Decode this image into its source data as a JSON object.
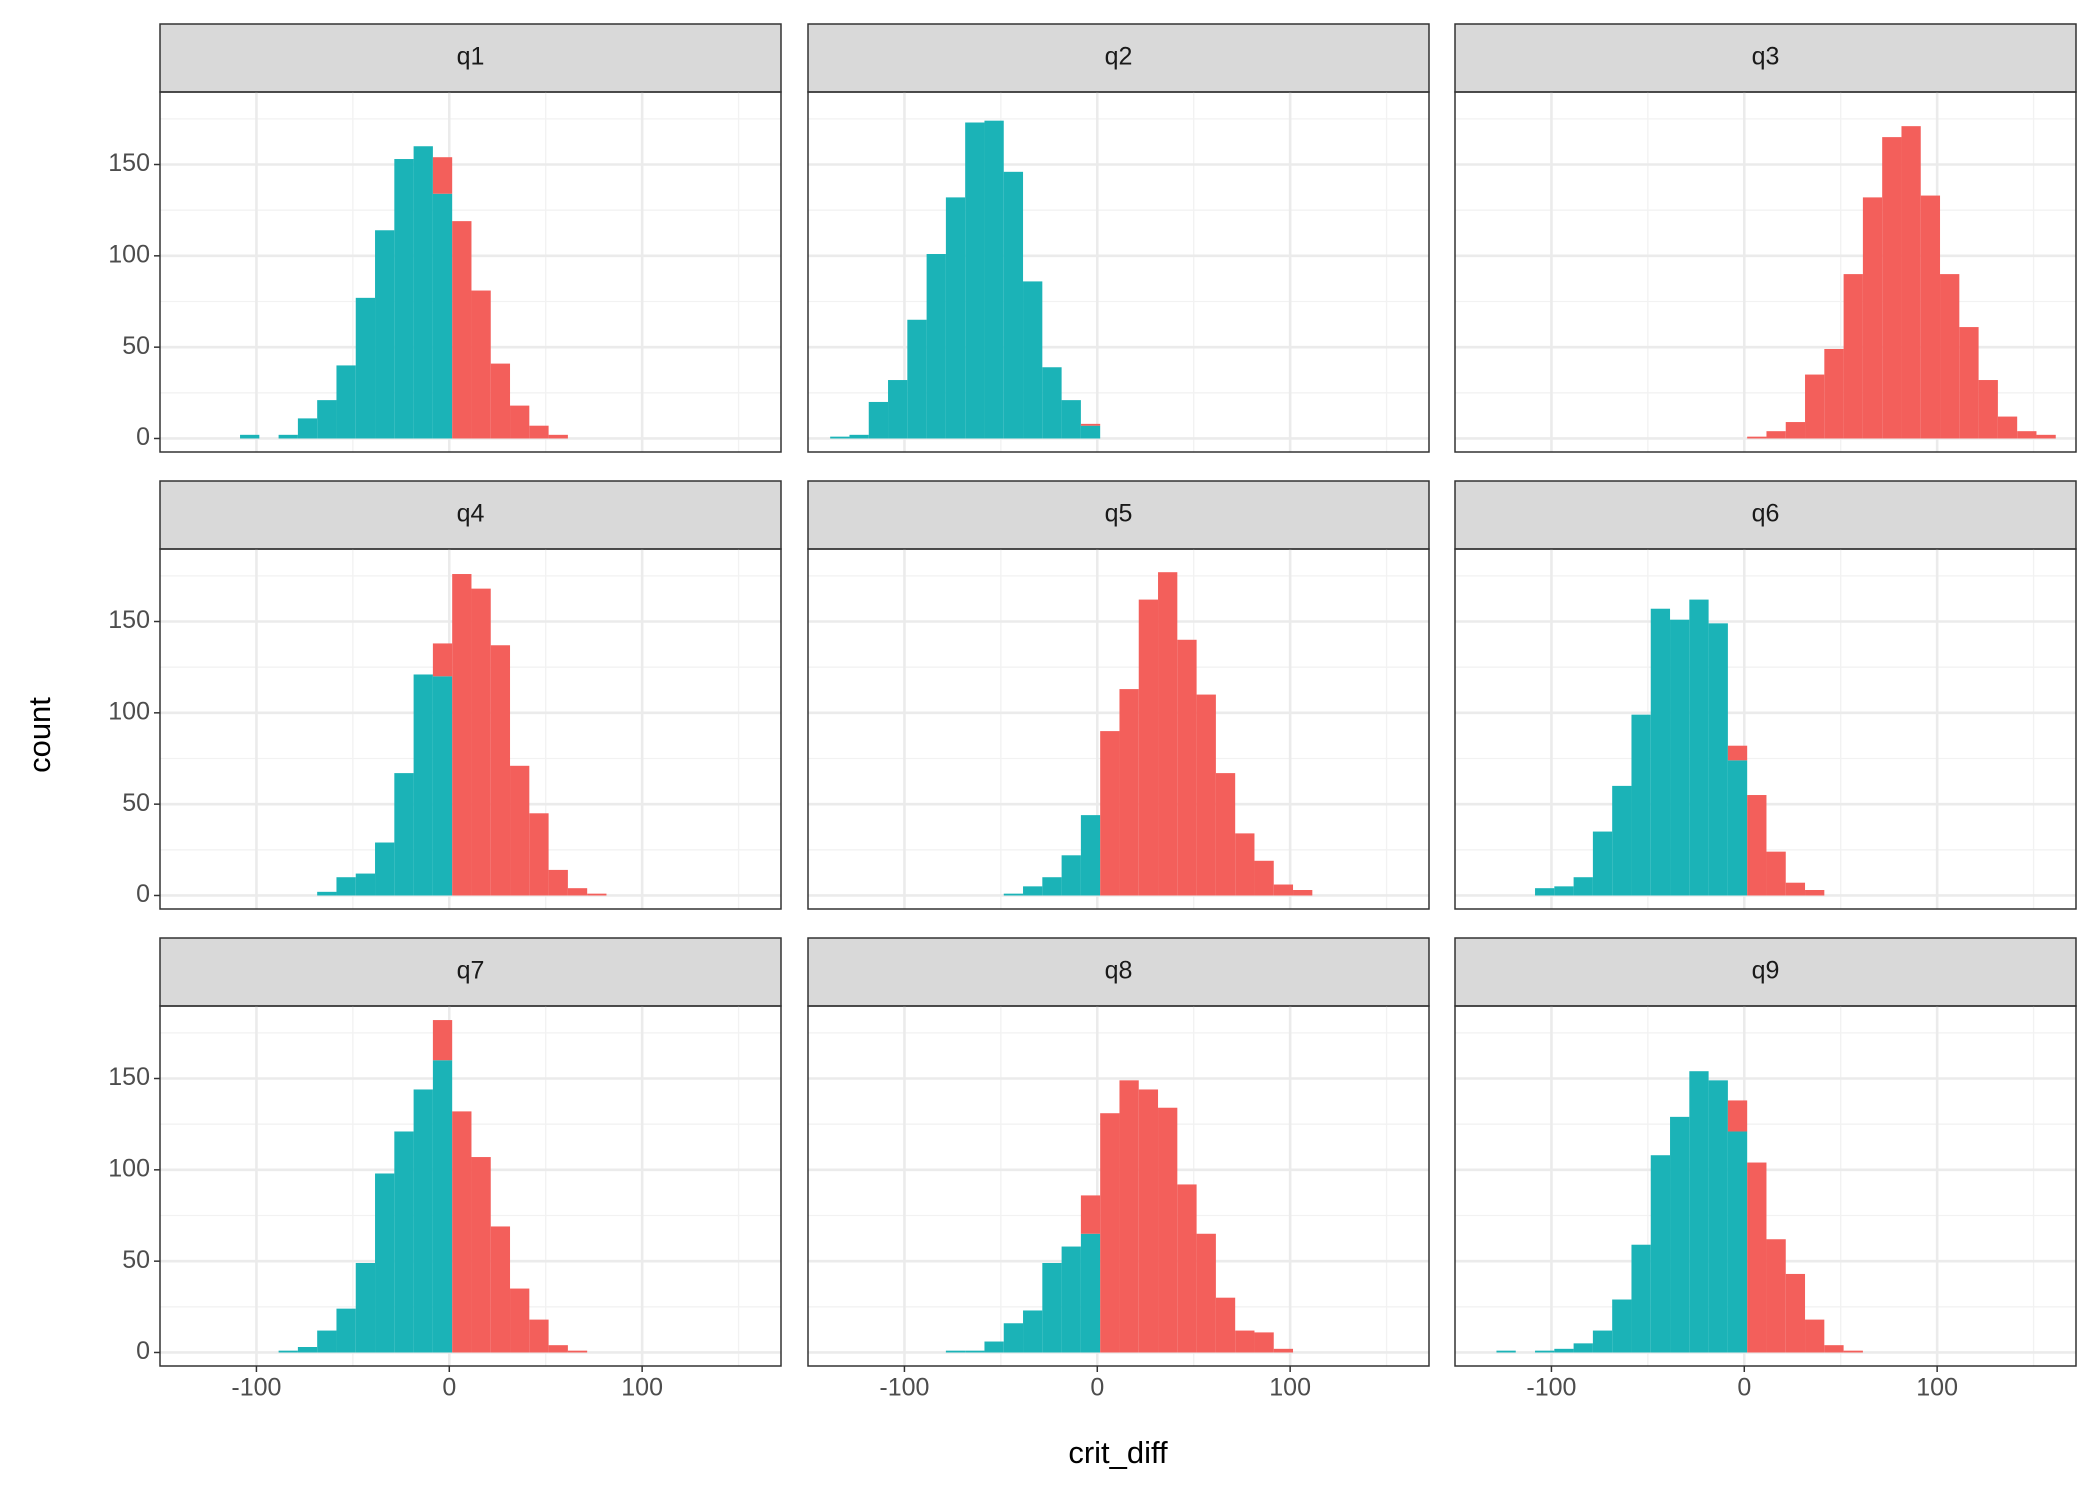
{
  "chart_data": {
    "type": "histogram",
    "xlabel": "crit_diff",
    "ylabel": "count",
    "xlim": [
      -150,
      172
    ],
    "ylim": [
      -7.4,
      189.7
    ],
    "xticks": [
      -100,
      0,
      100
    ],
    "yticks": [
      0,
      50,
      100,
      150
    ],
    "grid": true,
    "bins": [
      -138.5,
      -128.5,
      -118.5,
      -108.5,
      -98.5,
      -88.5,
      -78.5,
      -68.5,
      -58.5,
      -48.5,
      -38.5,
      -28.5,
      -18.5,
      -8.5,
      1.5,
      11.5,
      21.5,
      31.5,
      41.5,
      51.5,
      61.5,
      71.5,
      81.5,
      91.5,
      101.5,
      111.5,
      121.5,
      131.5,
      141.5,
      151.5,
      161.5
    ],
    "panels": [
      {
        "title": "q1",
        "series": [
          {
            "color": "#1bb3b7",
            "values": [
              0,
              0,
              0,
              2,
              0,
              2,
              11,
              21,
              40,
              77,
              114,
              153,
              160,
              134,
              0,
              0,
              0,
              0,
              0,
              0,
              0,
              0,
              0,
              0,
              0,
              0,
              0,
              0,
              0,
              0
            ]
          },
          {
            "color": "#f35f5b",
            "values": [
              0,
              0,
              0,
              0,
              0,
              0,
              0,
              0,
              0,
              0,
              0,
              0,
              0,
              20,
              119,
              81,
              41,
              18,
              7,
              2,
              0,
              0,
              0,
              0,
              0,
              0,
              0,
              0,
              0,
              0
            ]
          }
        ]
      },
      {
        "title": "q2",
        "series": [
          {
            "color": "#1bb3b7",
            "values": [
              1,
              2,
              20,
              32,
              65,
              101,
              132,
              173,
              174,
              146,
              86,
              39,
              21,
              7,
              0,
              0,
              0,
              0,
              0,
              0,
              0,
              0,
              0,
              0,
              0,
              0,
              0,
              0,
              0,
              0
            ]
          },
          {
            "color": "#f35f5b",
            "values": [
              0,
              0,
              0,
              0,
              0,
              0,
              0,
              0,
              0,
              0,
              0,
              0,
              0,
              1,
              0,
              0,
              0,
              0,
              0,
              0,
              0,
              0,
              0,
              0,
              0,
              0,
              0,
              0,
              0,
              0
            ]
          }
        ]
      },
      {
        "title": "q3",
        "series": [
          {
            "color": "#1bb3b7",
            "values": [
              0,
              0,
              0,
              0,
              0,
              0,
              0,
              0,
              0,
              0,
              0,
              0,
              0,
              0,
              0,
              0,
              0,
              0,
              0,
              0,
              0,
              0,
              0,
              0,
              0,
              0,
              0,
              0,
              0,
              0
            ]
          },
          {
            "color": "#f35f5b",
            "values": [
              0,
              0,
              0,
              0,
              0,
              0,
              0,
              0,
              0,
              0,
              0,
              0,
              0,
              0,
              1,
              4,
              9,
              35,
              49,
              90,
              132,
              165,
              171,
              133,
              90,
              61,
              32,
              12,
              4,
              2
            ]
          }
        ]
      },
      {
        "title": "q4",
        "series": [
          {
            "color": "#1bb3b7",
            "values": [
              0,
              0,
              0,
              0,
              0,
              0,
              0,
              2,
              10,
              12,
              29,
              67,
              121,
              120,
              0,
              0,
              0,
              0,
              0,
              0,
              0,
              0,
              0,
              0,
              0,
              0,
              0,
              0,
              0,
              0
            ]
          },
          {
            "color": "#f35f5b",
            "values": [
              0,
              0,
              0,
              0,
              0,
              0,
              0,
              0,
              0,
              0,
              0,
              0,
              0,
              18,
              176,
              168,
              137,
              71,
              45,
              14,
              4,
              1,
              0,
              0,
              0,
              0,
              0,
              0,
              0,
              0
            ]
          }
        ]
      },
      {
        "title": "q5",
        "series": [
          {
            "color": "#1bb3b7",
            "values": [
              0,
              0,
              0,
              0,
              0,
              0,
              0,
              0,
              0,
              1,
              5,
              10,
              22,
              44,
              0,
              0,
              0,
              0,
              0,
              0,
              0,
              0,
              0,
              0,
              0,
              0,
              0,
              0,
              0,
              0
            ]
          },
          {
            "color": "#f35f5b",
            "values": [
              0,
              0,
              0,
              0,
              0,
              0,
              0,
              0,
              0,
              0,
              0,
              0,
              0,
              0,
              90,
              113,
              162,
              177,
              140,
              110,
              67,
              34,
              19,
              6,
              3,
              0,
              0,
              0,
              0,
              0
            ]
          }
        ]
      },
      {
        "title": "q6",
        "series": [
          {
            "color": "#1bb3b7",
            "values": [
              0,
              0,
              0,
              4,
              5,
              10,
              35,
              60,
              99,
              157,
              151,
              162,
              149,
              74,
              0,
              0,
              0,
              0,
              0,
              0,
              0,
              0,
              0,
              0,
              0,
              0,
              0,
              0,
              0,
              0
            ]
          },
          {
            "color": "#f35f5b",
            "values": [
              0,
              0,
              0,
              0,
              0,
              0,
              0,
              0,
              0,
              0,
              0,
              0,
              0,
              8,
              55,
              24,
              7,
              3,
              0,
              0,
              0,
              0,
              0,
              0,
              0,
              0,
              0,
              0,
              0,
              0
            ]
          }
        ]
      },
      {
        "title": "q7",
        "series": [
          {
            "color": "#1bb3b7",
            "values": [
              0,
              0,
              0,
              0,
              0,
              1,
              3,
              12,
              24,
              49,
              98,
              121,
              144,
              160,
              0,
              0,
              0,
              0,
              0,
              0,
              0,
              0,
              0,
              0,
              0,
              0,
              0,
              0,
              0,
              0
            ]
          },
          {
            "color": "#f35f5b",
            "values": [
              0,
              0,
              0,
              0,
              0,
              0,
              0,
              0,
              0,
              0,
              0,
              0,
              0,
              22,
              132,
              107,
              69,
              35,
              18,
              4,
              1,
              0,
              0,
              0,
              0,
              0,
              0,
              0,
              0,
              0
            ]
          }
        ]
      },
      {
        "title": "q8",
        "series": [
          {
            "color": "#1bb3b7",
            "values": [
              0,
              0,
              0,
              0,
              0,
              0,
              1,
              1,
              6,
              16,
              23,
              49,
              58,
              65,
              0,
              0,
              0,
              0,
              0,
              0,
              0,
              0,
              0,
              0,
              0,
              0,
              0,
              0,
              0,
              0
            ]
          },
          {
            "color": "#f35f5b",
            "values": [
              0,
              0,
              0,
              0,
              0,
              0,
              0,
              0,
              0,
              0,
              0,
              0,
              0,
              21,
              131,
              149,
              144,
              134,
              92,
              65,
              30,
              12,
              11,
              2,
              0,
              0,
              0,
              0,
              0,
              0
            ]
          }
        ]
      },
      {
        "title": "q9",
        "series": [
          {
            "color": "#1bb3b7",
            "values": [
              0,
              1,
              0,
              1,
              2,
              5,
              12,
              29,
              59,
              108,
              129,
              154,
              149,
              121,
              0,
              0,
              0,
              0,
              0,
              0,
              0,
              0,
              0,
              0,
              0,
              0,
              0,
              0,
              0,
              0
            ]
          },
          {
            "color": "#f35f5b",
            "values": [
              0,
              0,
              0,
              0,
              0,
              0,
              0,
              0,
              0,
              0,
              0,
              0,
              0,
              17,
              104,
              62,
              43,
              18,
              4,
              1,
              0,
              0,
              0,
              0,
              0,
              0,
              0,
              0,
              0,
              0
            ]
          }
        ]
      }
    ]
  }
}
